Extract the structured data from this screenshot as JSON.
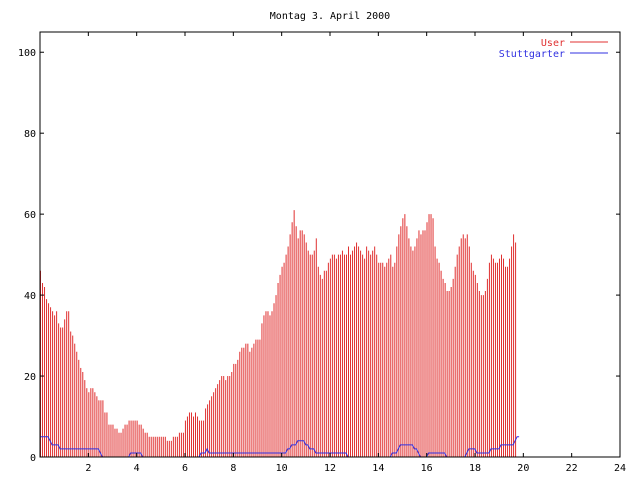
{
  "chart_data": {
    "type": "bar",
    "title": "Montag 3. April 2000",
    "xlabel": "",
    "ylabel": "",
    "xlim": [
      0,
      24
    ],
    "ylim": [
      0,
      105
    ],
    "x_ticks": [
      2,
      4,
      6,
      8,
      10,
      12,
      14,
      16,
      18,
      20,
      22,
      24
    ],
    "y_ticks": [
      0,
      20,
      40,
      60,
      80,
      100
    ],
    "grid": false,
    "legend_position": "top-right",
    "interval_hours": 0.0833,
    "series": [
      {
        "name": "User",
        "style": "impulses",
        "color": "#e03030",
        "values": [
          46,
          43,
          42,
          39,
          38,
          37,
          36,
          35,
          36,
          33,
          32,
          32,
          34,
          36,
          36,
          31,
          30,
          28,
          26,
          24,
          22,
          21,
          19,
          17,
          16,
          17,
          17,
          16,
          15,
          14,
          14,
          14,
          11,
          11,
          8,
          8,
          8,
          7,
          7,
          6,
          6,
          7,
          8,
          8,
          9,
          9,
          9,
          9,
          9,
          8,
          8,
          7,
          6,
          6,
          5,
          5,
          5,
          5,
          5,
          5,
          5,
          5,
          5,
          4,
          4,
          4,
          5,
          5,
          5,
          6,
          6,
          6,
          9,
          10,
          11,
          11,
          10,
          11,
          10,
          9,
          9,
          9,
          12,
          13,
          14,
          15,
          16,
          17,
          18,
          19,
          20,
          20,
          19,
          20,
          20,
          21,
          23,
          23,
          24,
          26,
          27,
          27,
          28,
          28,
          26,
          27,
          28,
          29,
          29,
          29,
          33,
          35,
          36,
          36,
          35,
          36,
          38,
          40,
          43,
          45,
          47,
          48,
          50,
          52,
          55,
          58,
          61,
          57,
          54,
          56,
          56,
          55,
          53,
          51,
          50,
          50,
          51,
          54,
          47,
          45,
          44,
          46,
          46,
          48,
          49,
          50,
          50,
          49,
          50,
          50,
          51,
          50,
          50,
          52,
          50,
          51,
          52,
          53,
          52,
          51,
          50,
          49,
          52,
          51,
          50,
          51,
          52,
          50,
          48,
          48,
          48,
          47,
          48,
          49,
          50,
          47,
          48,
          52,
          55,
          57,
          59,
          60,
          57,
          54,
          52,
          51,
          52,
          54,
          56,
          55,
          56,
          56,
          58,
          60,
          60,
          59,
          52,
          49,
          48,
          46,
          44,
          43,
          41,
          41,
          42,
          44,
          47,
          50,
          52,
          54,
          55,
          54,
          55,
          52,
          48,
          46,
          45,
          43,
          41,
          40,
          40,
          41,
          44,
          48,
          50,
          49,
          48,
          48,
          49,
          50,
          49,
          47,
          47,
          49,
          52,
          55,
          53
        ]
      },
      {
        "name": "Stuttgarter",
        "style": "lines",
        "color": "#3030e0",
        "values": [
          5,
          5,
          5,
          5,
          5,
          4,
          3,
          3,
          3,
          3,
          2,
          2,
          2,
          2,
          2,
          2,
          2,
          2,
          2,
          2,
          2,
          2,
          2,
          2,
          2,
          2,
          2,
          2,
          2,
          2,
          1,
          0,
          0,
          0,
          0,
          0,
          0,
          0,
          0,
          0,
          0,
          0,
          0,
          0,
          0,
          1,
          1,
          1,
          1,
          1,
          1,
          0,
          0,
          0,
          0,
          0,
          0,
          0,
          0,
          0,
          0,
          0,
          0,
          0,
          0,
          0,
          0,
          0,
          0,
          0,
          0,
          0,
          0,
          0,
          0,
          0,
          0,
          0,
          0,
          0,
          1,
          1,
          1,
          2,
          1,
          1,
          1,
          1,
          1,
          1,
          1,
          1,
          1,
          1,
          1,
          1,
          1,
          1,
          1,
          1,
          1,
          1,
          1,
          1,
          1,
          1,
          1,
          1,
          1,
          1,
          1,
          1,
          1,
          1,
          1,
          1,
          1,
          1,
          1,
          1,
          1,
          1,
          1,
          2,
          2,
          3,
          3,
          3,
          4,
          4,
          4,
          4,
          3,
          3,
          2,
          2,
          2,
          1,
          1,
          1,
          1,
          1,
          1,
          1,
          1,
          1,
          1,
          1,
          1,
          1,
          1,
          1,
          1,
          0,
          0,
          0,
          0,
          0,
          0,
          0,
          0,
          0,
          0,
          0,
          0,
          0,
          0,
          0,
          0,
          0,
          0,
          0,
          0,
          0,
          0,
          1,
          1,
          1,
          2,
          3,
          3,
          3,
          3,
          3,
          3,
          3,
          2,
          2,
          1,
          0,
          0,
          0,
          0,
          1,
          1,
          1,
          1,
          1,
          1,
          1,
          1,
          1,
          0,
          0,
          0,
          0,
          0,
          0,
          0,
          0,
          0,
          0,
          1,
          2,
          2,
          2,
          2,
          1,
          1,
          1,
          1,
          1,
          1,
          1,
          2,
          2,
          2,
          2,
          2,
          3,
          3,
          3,
          3,
          3,
          3,
          3,
          4,
          5,
          5
        ]
      }
    ]
  }
}
